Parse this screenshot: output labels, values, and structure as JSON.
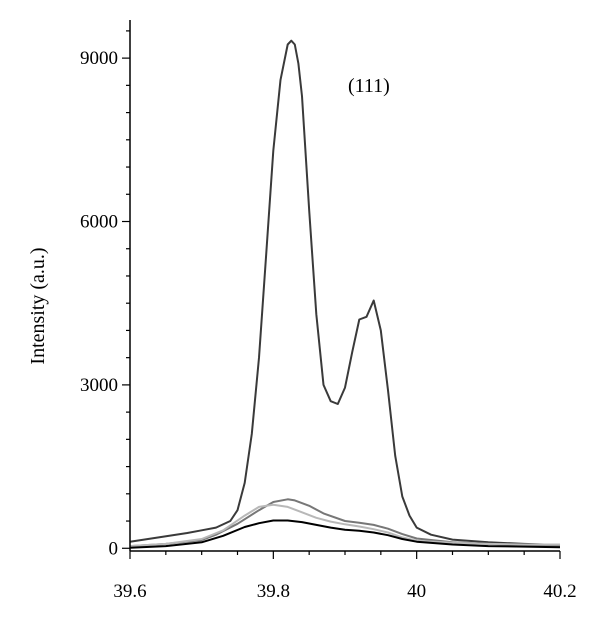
{
  "chart_data": {
    "type": "line",
    "title": "",
    "xlabel": "",
    "ylabel": "Intensity (a.u.)",
    "annotation": "(111)",
    "xlim": [
      39.6,
      40.2
    ],
    "ylim": [
      -50,
      9700
    ],
    "xticks": [
      39.6,
      39.8,
      40,
      40.2
    ],
    "xtick_labels": [
      "39.6",
      "39.8",
      "40",
      "40.2"
    ],
    "yticks": [
      0,
      3000,
      6000,
      9000
    ],
    "ytick_labels": [
      "0",
      "3000",
      "6000",
      "9000"
    ],
    "grid": false,
    "legend": "none",
    "series": [
      {
        "color": "#3a3a3a",
        "x": [
          39.6,
          39.64,
          39.68,
          39.7,
          39.72,
          39.74,
          39.75,
          39.76,
          39.77,
          39.78,
          39.79,
          39.8,
          39.81,
          39.82,
          39.825,
          39.83,
          39.835,
          39.84,
          39.85,
          39.86,
          39.87,
          39.88,
          39.89,
          39.9,
          39.91,
          39.92,
          39.93,
          39.94,
          39.95,
          39.96,
          39.97,
          39.98,
          39.99,
          40.0,
          40.02,
          40.05,
          40.1,
          40.15,
          40.2
        ],
        "y": [
          120,
          200,
          280,
          330,
          380,
          500,
          700,
          1200,
          2100,
          3500,
          5400,
          7300,
          8600,
          9250,
          9320,
          9250,
          8900,
          8300,
          6200,
          4300,
          3000,
          2700,
          2650,
          2950,
          3600,
          4200,
          4250,
          4550,
          4000,
          2900,
          1700,
          950,
          600,
          380,
          250,
          160,
          110,
          80,
          60
        ]
      },
      {
        "color": "#777777",
        "x": [
          39.6,
          39.65,
          39.7,
          39.72,
          39.75,
          39.78,
          39.8,
          39.82,
          39.83,
          39.85,
          39.87,
          39.9,
          39.92,
          39.94,
          39.96,
          39.98,
          40.0,
          40.05,
          40.1,
          40.15,
          40.2
        ],
        "y": [
          40,
          80,
          150,
          250,
          450,
          700,
          850,
          900,
          880,
          780,
          640,
          500,
          470,
          430,
          360,
          260,
          180,
          110,
          80,
          60,
          50
        ]
      },
      {
        "color": "#b8b8b8",
        "x": [
          39.6,
          39.65,
          39.7,
          39.73,
          39.76,
          39.78,
          39.8,
          39.82,
          39.84,
          39.86,
          39.88,
          39.9,
          39.92,
          39.94,
          39.96,
          39.98,
          40.0,
          40.05,
          40.1,
          40.15,
          40.2
        ],
        "y": [
          40,
          80,
          170,
          330,
          600,
          760,
          800,
          760,
          660,
          560,
          490,
          440,
          400,
          350,
          290,
          200,
          140,
          100,
          80,
          70,
          70
        ]
      },
      {
        "color": "#000000",
        "x": [
          39.6,
          39.65,
          39.7,
          39.73,
          39.76,
          39.78,
          39.8,
          39.82,
          39.84,
          39.86,
          39.88,
          39.9,
          39.92,
          39.94,
          39.96,
          39.98,
          40.0,
          40.05,
          40.1,
          40.15,
          40.2
        ],
        "y": [
          10,
          40,
          110,
          230,
          390,
          460,
          510,
          510,
          480,
          430,
          380,
          340,
          320,
          290,
          240,
          170,
          120,
          70,
          40,
          30,
          20
        ]
      }
    ]
  }
}
